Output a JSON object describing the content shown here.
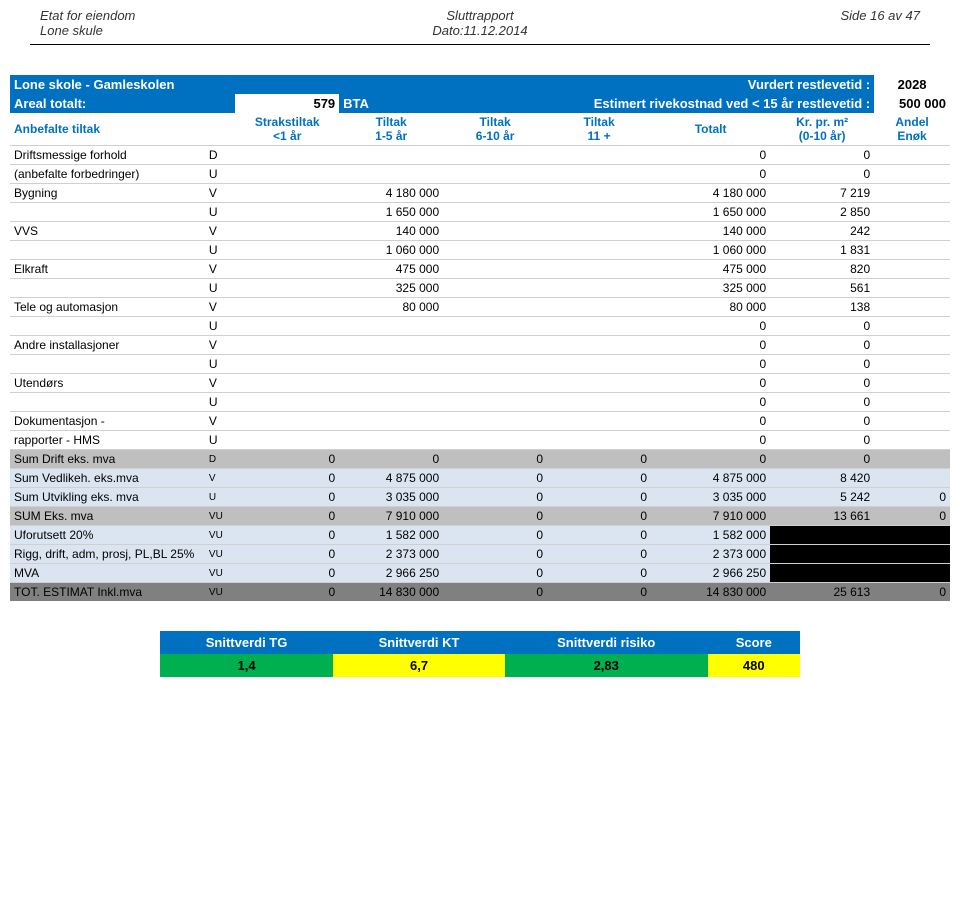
{
  "header": {
    "dept": "Etat for eiendom",
    "school": "Lone skule",
    "reportType": "Sluttrapport",
    "dateLabel": "Dato:11.12.2014",
    "page": "Side 16 av 47"
  },
  "titleRow": {
    "title": "Lone skole - Gamleskolen",
    "assessedLabel": "Vurdert restlevetid :",
    "assessedYear": "2028"
  },
  "areaRow": {
    "label": "Areal totalt:",
    "area": "579",
    "bta": "BTA",
    "estLabel": "Estimert rivekostnad ved < 15 år restlevetid :",
    "estValue": "500 000"
  },
  "colHeads": {
    "rec": "Anbefalte tiltak",
    "c1a": "Strakstiltak",
    "c1b": "<1 år",
    "c2a": "Tiltak",
    "c2b": "1-5 år",
    "c3a": "Tiltak",
    "c3b": "6-10 år",
    "c4a": "Tiltak",
    "c4b": "11 +",
    "c5": "Totalt",
    "c6a": "Kr. pr. m²",
    "c6b": "(0-10 år)",
    "c7a": "Andel",
    "c7b": "Enøk"
  },
  "rows": [
    {
      "name": "Driftsmessige forhold",
      "code": "D",
      "v": [
        "",
        "",
        "",
        "",
        "0",
        "0",
        ""
      ]
    },
    {
      "name": "(anbefalte forbedringer)",
      "code": "U",
      "v": [
        "",
        "",
        "",
        "",
        "0",
        "0",
        ""
      ]
    },
    {
      "name": "Bygning",
      "code": "V",
      "v": [
        "",
        "4 180 000",
        "",
        "",
        "4 180 000",
        "7 219",
        ""
      ]
    },
    {
      "name": "",
      "code": "U",
      "v": [
        "",
        "1 650 000",
        "",
        "",
        "1 650 000",
        "2 850",
        ""
      ]
    },
    {
      "name": "VVS",
      "code": "V",
      "v": [
        "",
        "140 000",
        "",
        "",
        "140 000",
        "242",
        ""
      ]
    },
    {
      "name": "",
      "code": "U",
      "v": [
        "",
        "1 060 000",
        "",
        "",
        "1 060 000",
        "1 831",
        ""
      ]
    },
    {
      "name": "Elkraft",
      "code": "V",
      "v": [
        "",
        "475 000",
        "",
        "",
        "475 000",
        "820",
        ""
      ]
    },
    {
      "name": "",
      "code": "U",
      "v": [
        "",
        "325 000",
        "",
        "",
        "325 000",
        "561",
        ""
      ]
    },
    {
      "name": "Tele og automasjon",
      "code": "V",
      "v": [
        "",
        "80 000",
        "",
        "",
        "80 000",
        "138",
        ""
      ]
    },
    {
      "name": "",
      "code": "U",
      "v": [
        "",
        "",
        "",
        "",
        "0",
        "0",
        ""
      ]
    },
    {
      "name": "Andre installasjoner",
      "code": "V",
      "v": [
        "",
        "",
        "",
        "",
        "0",
        "0",
        ""
      ]
    },
    {
      "name": "",
      "code": "U",
      "v": [
        "",
        "",
        "",
        "",
        "0",
        "0",
        ""
      ]
    },
    {
      "name": "Utendørs",
      "code": "V",
      "v": [
        "",
        "",
        "",
        "",
        "0",
        "0",
        ""
      ]
    },
    {
      "name": "",
      "code": "U",
      "v": [
        "",
        "",
        "",
        "",
        "0",
        "0",
        ""
      ]
    },
    {
      "name": "Dokumentasjon -",
      "code": "V",
      "v": [
        "",
        "",
        "",
        "",
        "0",
        "0",
        ""
      ]
    },
    {
      "name": "rapporter - HMS",
      "code": "U",
      "v": [
        "",
        "",
        "",
        "",
        "0",
        "0",
        ""
      ]
    }
  ],
  "sums": [
    {
      "name": "Sum Drift eks. mva",
      "code": "D",
      "bg": "grey",
      "v": [
        "0",
        "0",
        "0",
        "0",
        "0",
        "0",
        ""
      ],
      "enokBlack": false
    },
    {
      "name": "Sum Vedlikeh. eks.mva",
      "code": "V",
      "bg": "lt-blue",
      "v": [
        "0",
        "4 875 000",
        "0",
        "0",
        "4 875 000",
        "8 420",
        ""
      ],
      "enokBlack": false
    },
    {
      "name": "Sum Utvikling eks. mva",
      "code": "U",
      "bg": "lt-blue",
      "v": [
        "0",
        "3 035 000",
        "0",
        "0",
        "3 035 000",
        "5 242",
        "0"
      ],
      "enokBlack": false
    },
    {
      "name": "SUM Eks. mva",
      "code": "VU",
      "bg": "grey",
      "v": [
        "0",
        "7 910 000",
        "0",
        "0",
        "7 910 000",
        "13 661",
        "0"
      ],
      "enokBlack": false
    },
    {
      "name": "Uforutsett 20%",
      "code": "VU",
      "bg": "lt-blue",
      "v": [
        "0",
        "1 582 000",
        "0",
        "0",
        "1 582 000",
        "",
        ""
      ],
      "enokBlack": true,
      "m2Black": true
    },
    {
      "name": "Rigg, drift, adm, prosj, PL,BL 25%",
      "code": "VU",
      "bg": "lt-blue",
      "v": [
        "0",
        "2 373 000",
        "0",
        "0",
        "2 373 000",
        "",
        ""
      ],
      "enokBlack": true,
      "m2Black": true
    },
    {
      "name": "MVA",
      "code": "VU",
      "bg": "lt-blue",
      "v": [
        "0",
        "2 966 250",
        "0",
        "0",
        "2 966 250",
        "",
        ""
      ],
      "enokBlack": true,
      "m2Black": true
    },
    {
      "name": "TOT. ESTIMAT Inkl.mva",
      "code": "VU",
      "bg": "dark-grey",
      "v": [
        "0",
        "14 830 000",
        "0",
        "0",
        "14 830 000",
        "25 613",
        "0"
      ],
      "enokBlack": false
    }
  ],
  "score": {
    "heads": [
      "Snittverdi TG",
      "Snittverdi KT",
      "Snittverdi risiko",
      "Score"
    ],
    "vals": [
      "1,4",
      "6,7",
      "2,83",
      "480"
    ],
    "colors": [
      "sc-green",
      "sc-yellow",
      "sc-green",
      "sc-yellow"
    ]
  }
}
